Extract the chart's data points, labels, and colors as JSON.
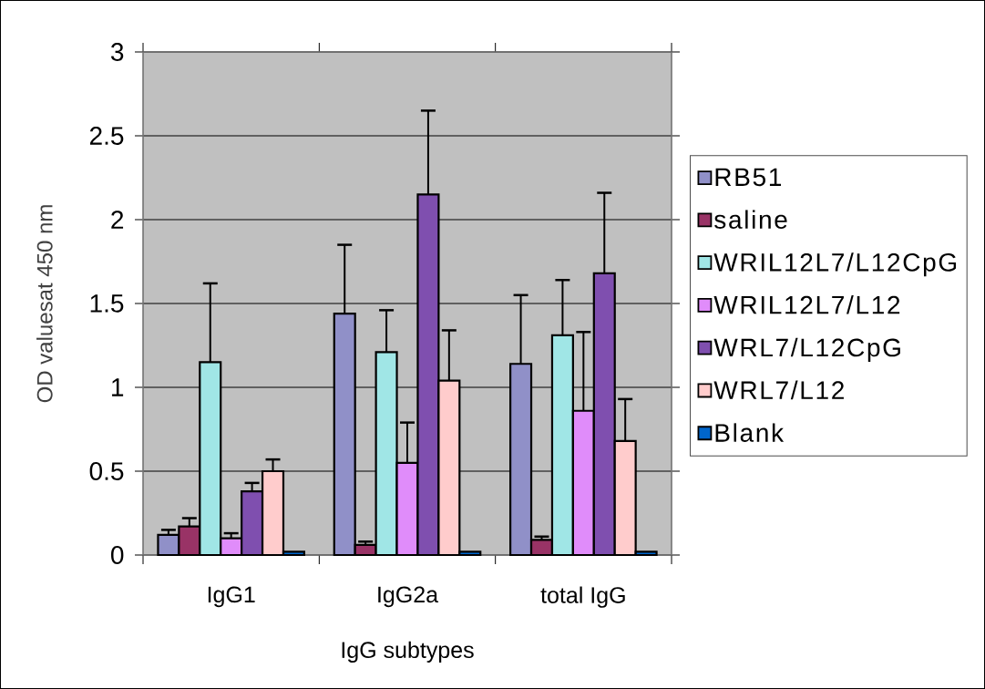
{
  "chart_data": {
    "type": "bar",
    "xlabel": "IgG subtypes",
    "ylabel": "OD valuesat 450 nm",
    "categories": [
      "IgG1",
      "IgG2a",
      "total IgG"
    ],
    "series": [
      {
        "name": "RB51",
        "color": "#9090c8",
        "values": [
          0.12,
          1.44,
          1.14
        ],
        "errors": [
          [
            0.12,
            0.15
          ],
          [
            1.44,
            1.85
          ],
          [
            1.14,
            1.55
          ]
        ]
      },
      {
        "name": "saline",
        "color": "#993366",
        "values": [
          0.17,
          0.06,
          0.09
        ],
        "errors": [
          [
            0.17,
            0.22
          ],
          [
            0.06,
            0.08
          ],
          [
            0.09,
            0.11
          ]
        ]
      },
      {
        "name": "WRIL12L7/L12CpG",
        "color": "#a0e6e6",
        "values": [
          1.15,
          1.21,
          1.31
        ],
        "errors": [
          [
            1.15,
            1.62
          ],
          [
            1.21,
            1.46
          ],
          [
            1.31,
            1.64
          ]
        ]
      },
      {
        "name": "WRIL12L7/L12",
        "color": "#e08cfa",
        "values": [
          0.1,
          0.55,
          0.86
        ],
        "errors": [
          [
            0.1,
            0.13
          ],
          [
            0.55,
            0.79
          ],
          [
            0.86,
            1.33
          ]
        ]
      },
      {
        "name": "WRL7/L12CpG",
        "color": "#7f4faf",
        "values": [
          0.38,
          2.15,
          1.68
        ],
        "errors": [
          [
            0.38,
            0.43
          ],
          [
            2.15,
            2.65
          ],
          [
            1.68,
            2.16
          ]
        ]
      },
      {
        "name": "WRL7/L12",
        "color": "#ffcccc",
        "values": [
          0.5,
          1.04,
          0.68
        ],
        "errors": [
          [
            0.5,
            0.57
          ],
          [
            1.04,
            1.34
          ],
          [
            0.68,
            0.93
          ]
        ]
      },
      {
        "name": "Blank",
        "color": "#0066cc",
        "values": [
          0.02,
          0.02,
          0.02
        ]
      }
    ],
    "ylim": [
      0,
      3
    ],
    "yticks": [
      0,
      0.5,
      1,
      1.5,
      2,
      2.5,
      3
    ],
    "grid": "y",
    "legend": "right"
  }
}
